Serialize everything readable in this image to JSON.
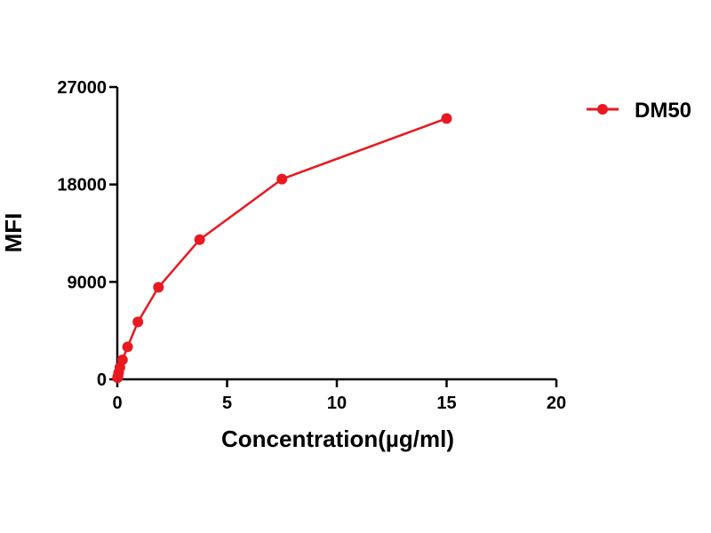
{
  "chart_data": {
    "type": "line",
    "xlabel": "Concentration(µg/ml)",
    "ylabel": "MFI",
    "xlim": [
      0,
      20
    ],
    "ylim": [
      0,
      27000
    ],
    "xticks": [
      0,
      5,
      10,
      15,
      20
    ],
    "yticks": [
      0,
      9000,
      18000,
      27000
    ],
    "grid": false,
    "legend_position": "top-right",
    "color": "#e8191f",
    "series": [
      {
        "name": "DM50",
        "x": [
          0.0146,
          0.0293,
          0.0586,
          0.117,
          0.234,
          0.469,
          0.9375,
          1.875,
          3.75,
          7.5,
          15
        ],
        "y": [
          150,
          300,
          600,
          1100,
          1800,
          3000,
          5300,
          8500,
          12900,
          18500,
          24100
        ]
      }
    ]
  }
}
